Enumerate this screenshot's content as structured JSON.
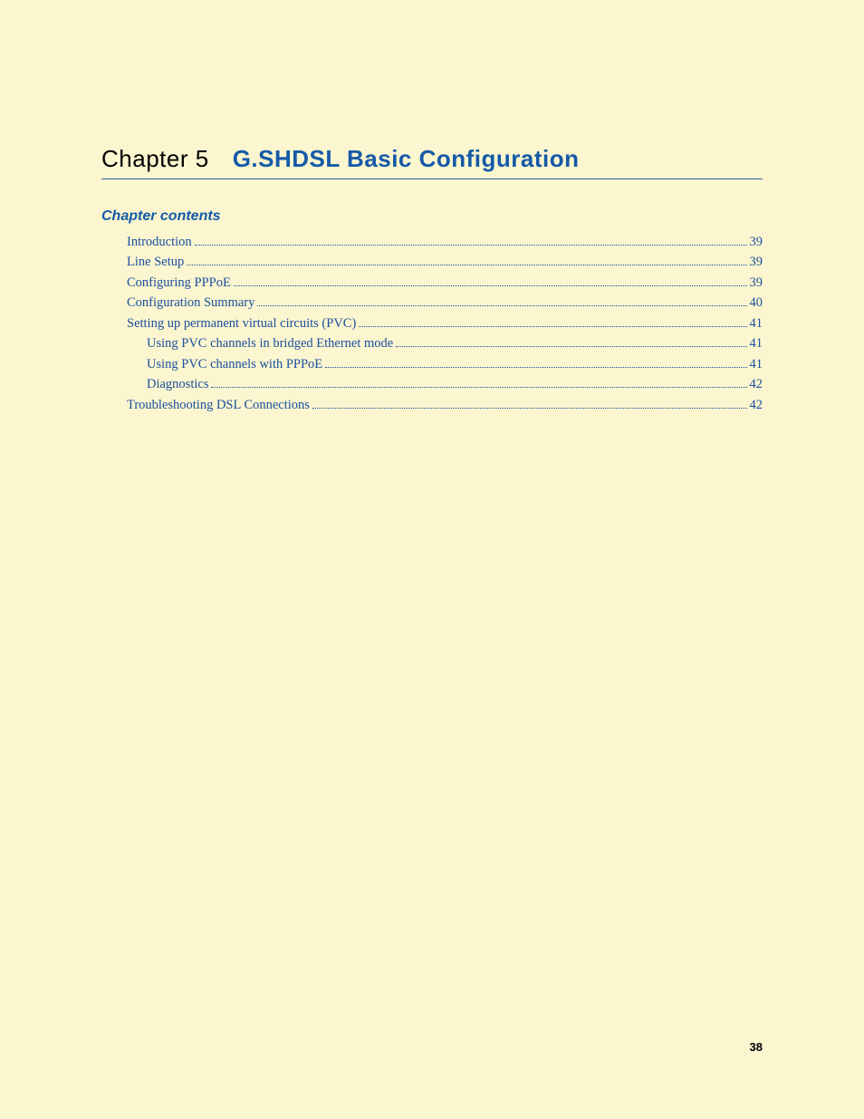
{
  "colors": {
    "page_background": "#fbf6cf",
    "heading_blue": "#155aa8",
    "link_blue": "#1b4fa0",
    "rule_blue": "#2a5aa0",
    "text_black": "#000000"
  },
  "typography": {
    "chapter_label_fontsize": 26,
    "chapter_title_fontsize": 26,
    "chapter_title_weight": 900,
    "contents_heading_fontsize": 16,
    "toc_fontsize": 14.5,
    "page_number_fontsize": 13
  },
  "chapter": {
    "label": "Chapter 5",
    "title": "G.SHDSL Basic Configuration"
  },
  "contents_heading": "Chapter contents",
  "toc": [
    {
      "label": "Introduction",
      "page": "39",
      "indent": 0
    },
    {
      "label": "Line Setup",
      "page": "39",
      "indent": 0
    },
    {
      "label": "Configuring PPPoE",
      "page": "39",
      "indent": 0
    },
    {
      "label": "Configuration Summary",
      "page": "40",
      "indent": 0
    },
    {
      "label": "Setting up permanent virtual circuits (PVC)",
      "page": "41",
      "indent": 0
    },
    {
      "label": "Using PVC channels in bridged Ethernet mode",
      "page": "41",
      "indent": 1
    },
    {
      "label": "Using PVC channels with PPPoE",
      "page": "41",
      "indent": 1
    },
    {
      "label": "Diagnostics",
      "page": "42",
      "indent": 1
    },
    {
      "label": "Troubleshooting DSL Connections",
      "page": "42",
      "indent": 0
    }
  ],
  "page_number": "38"
}
